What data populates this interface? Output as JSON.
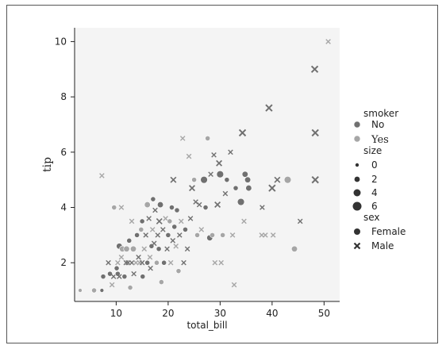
{
  "chart_data": {
    "type": "scatter",
    "title": "",
    "xlabel": "total_bill",
    "ylabel": "tip",
    "xlim": [
      2,
      53
    ],
    "ylim": [
      0.6,
      10.5
    ],
    "xticks": [
      10,
      20,
      30,
      40,
      50
    ],
    "yticks": [
      2,
      4,
      6,
      8,
      10
    ],
    "grid": false,
    "legend_placement": "right",
    "hue": {
      "title": "smoker",
      "levels": [
        {
          "label": "No",
          "color": "#707070"
        },
        {
          "label": "Yes",
          "color": "#a6a6a6"
        }
      ]
    },
    "size": {
      "title": "size",
      "levels": [
        {
          "label": "0",
          "value": 0
        },
        {
          "label": "2",
          "value": 2
        },
        {
          "label": "4",
          "value": 4
        },
        {
          "label": "6",
          "value": 6
        }
      ]
    },
    "style": {
      "title": "sex",
      "levels": [
        {
          "label": "Female",
          "marker": "circle"
        },
        {
          "label": "Male",
          "marker": "x"
        }
      ]
    },
    "points": [
      {
        "x": 3.07,
        "y": 1.0,
        "smoker": "Yes",
        "size": 1,
        "sex": "Female"
      },
      {
        "x": 5.75,
        "y": 1.0,
        "smoker": "Yes",
        "size": 2,
        "sex": "Female"
      },
      {
        "x": 7.25,
        "y": 1.0,
        "smoker": "No",
        "size": 1,
        "sex": "Female"
      },
      {
        "x": 7.25,
        "y": 5.15,
        "smoker": "Yes",
        "size": 2,
        "sex": "Male"
      },
      {
        "x": 7.5,
        "y": 1.5,
        "smoker": "No",
        "size": 2,
        "sex": "Female"
      },
      {
        "x": 8.5,
        "y": 2.0,
        "smoker": "No",
        "size": 2,
        "sex": "Male"
      },
      {
        "x": 8.8,
        "y": 1.6,
        "smoker": "No",
        "size": 2,
        "sex": "Female"
      },
      {
        "x": 9.2,
        "y": 1.2,
        "smoker": "Yes",
        "size": 2,
        "sex": "Male"
      },
      {
        "x": 9.5,
        "y": 1.5,
        "smoker": "No",
        "size": 2,
        "sex": "Male"
      },
      {
        "x": 9.6,
        "y": 4.0,
        "smoker": "Yes",
        "size": 2,
        "sex": "Female"
      },
      {
        "x": 10.1,
        "y": 1.8,
        "smoker": "No",
        "size": 2,
        "sex": "Female"
      },
      {
        "x": 10.3,
        "y": 2.0,
        "smoker": "Yes",
        "size": 2,
        "sex": "Male"
      },
      {
        "x": 10.3,
        "y": 1.6,
        "smoker": "No",
        "size": 2,
        "sex": "Female"
      },
      {
        "x": 10.6,
        "y": 2.6,
        "smoker": "No",
        "size": 3,
        "sex": "Female"
      },
      {
        "x": 10.6,
        "y": 1.5,
        "smoker": "No",
        "size": 2,
        "sex": "Male"
      },
      {
        "x": 11.0,
        "y": 2.2,
        "smoker": "Yes",
        "size": 2,
        "sex": "Male"
      },
      {
        "x": 11.0,
        "y": 4.0,
        "smoker": "Yes",
        "size": 2,
        "sex": "Male"
      },
      {
        "x": 11.2,
        "y": 2.5,
        "smoker": "Yes",
        "size": 3,
        "sex": "Female"
      },
      {
        "x": 11.6,
        "y": 1.5,
        "smoker": "No",
        "size": 2,
        "sex": "Female"
      },
      {
        "x": 11.9,
        "y": 2.0,
        "smoker": "No",
        "size": 2,
        "sex": "Male"
      },
      {
        "x": 12.0,
        "y": 2.5,
        "smoker": "Yes",
        "size": 3,
        "sex": "Female"
      },
      {
        "x": 12.3,
        "y": 2.0,
        "smoker": "No",
        "size": 2,
        "sex": "Male"
      },
      {
        "x": 12.5,
        "y": 2.8,
        "smoker": "No",
        "size": 2,
        "sex": "Female"
      },
      {
        "x": 12.7,
        "y": 1.1,
        "smoker": "Yes",
        "size": 2,
        "sex": "Female"
      },
      {
        "x": 13.0,
        "y": 2.0,
        "smoker": "No",
        "size": 2,
        "sex": "Male"
      },
      {
        "x": 13.0,
        "y": 3.5,
        "smoker": "Yes",
        "size": 2,
        "sex": "Male"
      },
      {
        "x": 13.3,
        "y": 2.5,
        "smoker": "Yes",
        "size": 3,
        "sex": "Female"
      },
      {
        "x": 13.4,
        "y": 1.6,
        "smoker": "No",
        "size": 2,
        "sex": "Male"
      },
      {
        "x": 13.8,
        "y": 2.0,
        "smoker": "Yes",
        "size": 2,
        "sex": "Male"
      },
      {
        "x": 14.0,
        "y": 3.0,
        "smoker": "No",
        "size": 2,
        "sex": "Female"
      },
      {
        "x": 14.3,
        "y": 2.2,
        "smoker": "No",
        "size": 2,
        "sex": "Male"
      },
      {
        "x": 14.5,
        "y": 2.0,
        "smoker": "Yes",
        "size": 2,
        "sex": "Male"
      },
      {
        "x": 14.8,
        "y": 3.2,
        "smoker": "Yes",
        "size": 2,
        "sex": "Female"
      },
      {
        "x": 15.0,
        "y": 2.0,
        "smoker": "No",
        "size": 2,
        "sex": "Male"
      },
      {
        "x": 15.0,
        "y": 3.5,
        "smoker": "No",
        "size": 2,
        "sex": "Female"
      },
      {
        "x": 15.1,
        "y": 1.5,
        "smoker": "No",
        "size": 2,
        "sex": "Female"
      },
      {
        "x": 15.4,
        "y": 2.5,
        "smoker": "Yes",
        "size": 2,
        "sex": "Male"
      },
      {
        "x": 15.7,
        "y": 3.0,
        "smoker": "No",
        "size": 2,
        "sex": "Male"
      },
      {
        "x": 16.0,
        "y": 2.0,
        "smoker": "No",
        "size": 2,
        "sex": "Female"
      },
      {
        "x": 16.0,
        "y": 4.1,
        "smoker": "Yes",
        "size": 3,
        "sex": "Female"
      },
      {
        "x": 16.3,
        "y": 3.6,
        "smoker": "No",
        "size": 2,
        "sex": "Male"
      },
      {
        "x": 16.5,
        "y": 2.2,
        "smoker": "Yes",
        "size": 2,
        "sex": "Male"
      },
      {
        "x": 16.6,
        "y": 1.8,
        "smoker": "No",
        "size": 2,
        "sex": "Male"
      },
      {
        "x": 16.8,
        "y": 2.6,
        "smoker": "No",
        "size": 2,
        "sex": "Female"
      },
      {
        "x": 17.0,
        "y": 3.2,
        "smoker": "Yes",
        "size": 2,
        "sex": "Male"
      },
      {
        "x": 17.1,
        "y": 4.3,
        "smoker": "No",
        "size": 2,
        "sex": "Female"
      },
      {
        "x": 17.3,
        "y": 2.7,
        "smoker": "No",
        "size": 2,
        "sex": "Male"
      },
      {
        "x": 17.5,
        "y": 3.9,
        "smoker": "No",
        "size": 2,
        "sex": "Male"
      },
      {
        "x": 17.8,
        "y": 2.0,
        "smoker": "Yes",
        "size": 2,
        "sex": "Female"
      },
      {
        "x": 18.0,
        "y": 3.0,
        "smoker": "No",
        "size": 2,
        "sex": "Male"
      },
      {
        "x": 18.2,
        "y": 2.5,
        "smoker": "No",
        "size": 2,
        "sex": "Female"
      },
      {
        "x": 18.3,
        "y": 3.5,
        "smoker": "No",
        "size": 3,
        "sex": "Male"
      },
      {
        "x": 18.5,
        "y": 4.1,
        "smoker": "No",
        "size": 3,
        "sex": "Female"
      },
      {
        "x": 18.7,
        "y": 1.3,
        "smoker": "Yes",
        "size": 2,
        "sex": "Female"
      },
      {
        "x": 19.0,
        "y": 3.2,
        "smoker": "No",
        "size": 2,
        "sex": "Male"
      },
      {
        "x": 19.2,
        "y": 2.0,
        "smoker": "No",
        "size": 2,
        "sex": "Female"
      },
      {
        "x": 19.5,
        "y": 3.6,
        "smoker": "Yes",
        "size": 2,
        "sex": "Male"
      },
      {
        "x": 19.8,
        "y": 2.5,
        "smoker": "No",
        "size": 2,
        "sex": "Male"
      },
      {
        "x": 20.0,
        "y": 3.0,
        "smoker": "No",
        "size": 2,
        "sex": "Female"
      },
      {
        "x": 20.3,
        "y": 3.5,
        "smoker": "Yes",
        "size": 2,
        "sex": "Female"
      },
      {
        "x": 20.5,
        "y": 2.0,
        "smoker": "Yes",
        "size": 2,
        "sex": "Male"
      },
      {
        "x": 20.7,
        "y": 4.0,
        "smoker": "No",
        "size": 2,
        "sex": "Female"
      },
      {
        "x": 20.9,
        "y": 2.8,
        "smoker": "No",
        "size": 2,
        "sex": "Male"
      },
      {
        "x": 21.0,
        "y": 5.0,
        "smoker": "No",
        "size": 3,
        "sex": "Male"
      },
      {
        "x": 21.2,
        "y": 3.3,
        "smoker": "No",
        "size": 2,
        "sex": "Female"
      },
      {
        "x": 21.5,
        "y": 2.6,
        "smoker": "Yes",
        "size": 2,
        "sex": "Male"
      },
      {
        "x": 21.7,
        "y": 3.9,
        "smoker": "No",
        "size": 2,
        "sex": "Female"
      },
      {
        "x": 22.0,
        "y": 1.7,
        "smoker": "Yes",
        "size": 2,
        "sex": "Female"
      },
      {
        "x": 22.2,
        "y": 3.0,
        "smoker": "No",
        "size": 2,
        "sex": "Male"
      },
      {
        "x": 22.5,
        "y": 3.5,
        "smoker": "Yes",
        "size": 2,
        "sex": "Male"
      },
      {
        "x": 22.8,
        "y": 6.5,
        "smoker": "Yes",
        "size": 2,
        "sex": "Male"
      },
      {
        "x": 23.0,
        "y": 2.0,
        "smoker": "No",
        "size": 2,
        "sex": "Male"
      },
      {
        "x": 23.3,
        "y": 3.2,
        "smoker": "No",
        "size": 2,
        "sex": "Female"
      },
      {
        "x": 23.7,
        "y": 2.5,
        "smoker": "No",
        "size": 2,
        "sex": "Male"
      },
      {
        "x": 24.0,
        "y": 5.85,
        "smoker": "Yes",
        "size": 2,
        "sex": "Male"
      },
      {
        "x": 24.3,
        "y": 3.6,
        "smoker": "No",
        "size": 2,
        "sex": "Male"
      },
      {
        "x": 24.6,
        "y": 4.7,
        "smoker": "No",
        "size": 3,
        "sex": "Male"
      },
      {
        "x": 25.0,
        "y": 5.0,
        "smoker": "Yes",
        "size": 2,
        "sex": "Female"
      },
      {
        "x": 25.3,
        "y": 4.2,
        "smoker": "No",
        "size": 2,
        "sex": "Male"
      },
      {
        "x": 25.6,
        "y": 3.0,
        "smoker": "Yes",
        "size": 2,
        "sex": "Female"
      },
      {
        "x": 26.0,
        "y": 4.1,
        "smoker": "No",
        "size": 2,
        "sex": "Male"
      },
      {
        "x": 26.4,
        "y": 3.2,
        "smoker": "Yes",
        "size": 2,
        "sex": "Male"
      },
      {
        "x": 26.9,
        "y": 5.0,
        "smoker": "No",
        "size": 4,
        "sex": "Female"
      },
      {
        "x": 27.2,
        "y": 4.0,
        "smoker": "No",
        "size": 2,
        "sex": "Female"
      },
      {
        "x": 27.6,
        "y": 6.5,
        "smoker": "Yes",
        "size": 2,
        "sex": "Female"
      },
      {
        "x": 28.0,
        "y": 2.9,
        "smoker": "No",
        "size": 3,
        "sex": "Female"
      },
      {
        "x": 28.2,
        "y": 5.2,
        "smoker": "No",
        "size": 2,
        "sex": "Male"
      },
      {
        "x": 28.5,
        "y": 3.0,
        "smoker": "Yes",
        "size": 2,
        "sex": "Female"
      },
      {
        "x": 28.8,
        "y": 5.9,
        "smoker": "No",
        "size": 2,
        "sex": "Male"
      },
      {
        "x": 29.0,
        "y": 2.0,
        "smoker": "Yes",
        "size": 2,
        "sex": "Male"
      },
      {
        "x": 29.5,
        "y": 4.1,
        "smoker": "No",
        "size": 3,
        "sex": "Male"
      },
      {
        "x": 29.8,
        "y": 5.6,
        "smoker": "No",
        "size": 3,
        "sex": "Male"
      },
      {
        "x": 30.0,
        "y": 5.2,
        "smoker": "No",
        "size": 4,
        "sex": "Female"
      },
      {
        "x": 30.2,
        "y": 2.0,
        "smoker": "Yes",
        "size": 2,
        "sex": "Male"
      },
      {
        "x": 30.5,
        "y": 3.0,
        "smoker": "Yes",
        "size": 2,
        "sex": "Female"
      },
      {
        "x": 31.0,
        "y": 4.5,
        "smoker": "No",
        "size": 2,
        "sex": "Male"
      },
      {
        "x": 31.3,
        "y": 5.0,
        "smoker": "No",
        "size": 2,
        "sex": "Female"
      },
      {
        "x": 32.0,
        "y": 6.0,
        "smoker": "No",
        "size": 2,
        "sex": "Male"
      },
      {
        "x": 32.4,
        "y": 3.0,
        "smoker": "Yes",
        "size": 2,
        "sex": "Male"
      },
      {
        "x": 32.7,
        "y": 1.2,
        "smoker": "Yes",
        "size": 2,
        "sex": "Male"
      },
      {
        "x": 33.0,
        "y": 4.7,
        "smoker": "No",
        "size": 2,
        "sex": "Female"
      },
      {
        "x": 34.0,
        "y": 4.2,
        "smoker": "No",
        "size": 4,
        "sex": "Female"
      },
      {
        "x": 34.3,
        "y": 6.7,
        "smoker": "No",
        "size": 4,
        "sex": "Male"
      },
      {
        "x": 34.6,
        "y": 3.5,
        "smoker": "Yes",
        "size": 2,
        "sex": "Male"
      },
      {
        "x": 34.8,
        "y": 5.2,
        "smoker": "No",
        "size": 3,
        "sex": "Female"
      },
      {
        "x": 35.3,
        "y": 5.0,
        "smoker": "No",
        "size": 3,
        "sex": "Female"
      },
      {
        "x": 35.5,
        "y": 4.7,
        "smoker": "No",
        "size": 3,
        "sex": "Female"
      },
      {
        "x": 38.0,
        "y": 3.0,
        "smoker": "Yes",
        "size": 2,
        "sex": "Male"
      },
      {
        "x": 38.1,
        "y": 4.0,
        "smoker": "No",
        "size": 2,
        "sex": "Male"
      },
      {
        "x": 38.7,
        "y": 3.0,
        "smoker": "Yes",
        "size": 2,
        "sex": "Male"
      },
      {
        "x": 39.4,
        "y": 7.6,
        "smoker": "No",
        "size": 4,
        "sex": "Male"
      },
      {
        "x": 40.0,
        "y": 4.7,
        "smoker": "No",
        "size": 4,
        "sex": "Male"
      },
      {
        "x": 40.2,
        "y": 3.0,
        "smoker": "Yes",
        "size": 2,
        "sex": "Male"
      },
      {
        "x": 41.0,
        "y": 5.0,
        "smoker": "No",
        "size": 3,
        "sex": "Male"
      },
      {
        "x": 43.0,
        "y": 5.0,
        "smoker": "Yes",
        "size": 4,
        "sex": "Female"
      },
      {
        "x": 44.3,
        "y": 2.5,
        "smoker": "Yes",
        "size": 3,
        "sex": "Female"
      },
      {
        "x": 45.4,
        "y": 3.5,
        "smoker": "No",
        "size": 2,
        "sex": "Male"
      },
      {
        "x": 48.2,
        "y": 9.0,
        "smoker": "No",
        "size": 4,
        "sex": "Male"
      },
      {
        "x": 48.3,
        "y": 6.7,
        "smoker": "No",
        "size": 4,
        "sex": "Male"
      },
      {
        "x": 48.3,
        "y": 5.0,
        "smoker": "No",
        "size": 4,
        "sex": "Male"
      },
      {
        "x": 50.8,
        "y": 10.0,
        "smoker": "Yes",
        "size": 2,
        "sex": "Male"
      }
    ]
  }
}
